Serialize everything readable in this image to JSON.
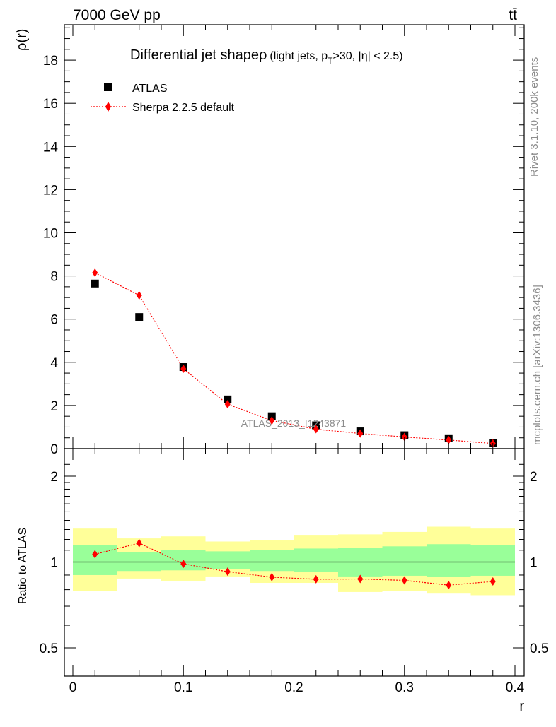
{
  "header": {
    "energy_label": "7000 GeV pp",
    "process_label": "tt̄"
  },
  "side_labels": {
    "rivet": "Rivet 3.1.10,  200k events",
    "mcplots": "mcplots.cern.ch [arXiv:1306.3436]"
  },
  "chart_data": [
    {
      "type": "scatter",
      "title": "Differential jet shape",
      "title_rho": "ρ",
      "subtitle_a": "(light jets, p",
      "subtitle_sub": "T",
      "subtitle_b": ">30, |η| < 2.5)",
      "ylabel": "ρ(r)",
      "xlabel": "r",
      "xlim": [
        0,
        0.4
      ],
      "ylim": [
        0,
        19.5
      ],
      "y_ticks": [
        "0",
        "2",
        "4",
        "6",
        "8",
        "10",
        "12",
        "14",
        "16",
        "18"
      ],
      "legend_position": "top-left",
      "watermark": "ATLAS_2013_I1243871",
      "series": [
        {
          "name": "ATLAS",
          "marker": "square",
          "color": "#000000",
          "x": [
            0.02,
            0.06,
            0.1,
            0.14,
            0.18,
            0.22,
            0.26,
            0.3,
            0.34,
            0.38
          ],
          "values": [
            7.65,
            6.1,
            3.78,
            2.28,
            1.5,
            1.08,
            0.8,
            0.62,
            0.48,
            0.27
          ]
        },
        {
          "name": "Sherpa 2.2.5 default",
          "marker": "diamond",
          "line": "dotted",
          "color": "#ff0000",
          "x": [
            0.02,
            0.06,
            0.1,
            0.14,
            0.18,
            0.22,
            0.26,
            0.3,
            0.34,
            0.38
          ],
          "values": [
            8.15,
            7.1,
            3.7,
            2.06,
            1.3,
            0.9,
            0.7,
            0.54,
            0.4,
            0.24
          ]
        }
      ]
    },
    {
      "type": "scatter",
      "ylabel": "Ratio to ATLAS",
      "xlabel": "r",
      "xlim": [
        0,
        0.4
      ],
      "ylim": [
        0.4,
        2.3
      ],
      "y_scale": "log",
      "y_ticks": [
        "0.5",
        "1",
        "2"
      ],
      "x_ticks": [
        "0",
        "0.1",
        "0.2",
        "0.3",
        "0.4"
      ],
      "reference": 1,
      "bands": {
        "edges": [
          0,
          0.04,
          0.08,
          0.12,
          0.16,
          0.2,
          0.24,
          0.28,
          0.32,
          0.36,
          0.4
        ],
        "inner_color": "#99ff99",
        "outer_color": "#ffff99",
        "inner_low": [
          0.9,
          0.93,
          0.935,
          0.945,
          0.93,
          0.925,
          0.89,
          0.895,
          0.885,
          0.895
        ],
        "inner_high": [
          1.15,
          1.08,
          1.1,
          1.09,
          1.1,
          1.115,
          1.12,
          1.135,
          1.155,
          1.15
        ],
        "outer_low": [
          0.79,
          0.875,
          0.86,
          0.89,
          0.845,
          0.845,
          0.785,
          0.79,
          0.775,
          0.765
        ],
        "outer_high": [
          1.31,
          1.21,
          1.23,
          1.18,
          1.19,
          1.245,
          1.25,
          1.275,
          1.33,
          1.31
        ]
      },
      "series": [
        {
          "name": "Sherpa 2.2.5 default",
          "marker": "diamond",
          "line": "dotted",
          "color": "#ff0000",
          "x": [
            0.02,
            0.06,
            0.1,
            0.14,
            0.18,
            0.22,
            0.26,
            0.3,
            0.34,
            0.38
          ],
          "values": [
            1.065,
            1.165,
            0.985,
            0.925,
            0.885,
            0.87,
            0.872,
            0.862,
            0.83,
            0.855
          ]
        }
      ]
    }
  ]
}
